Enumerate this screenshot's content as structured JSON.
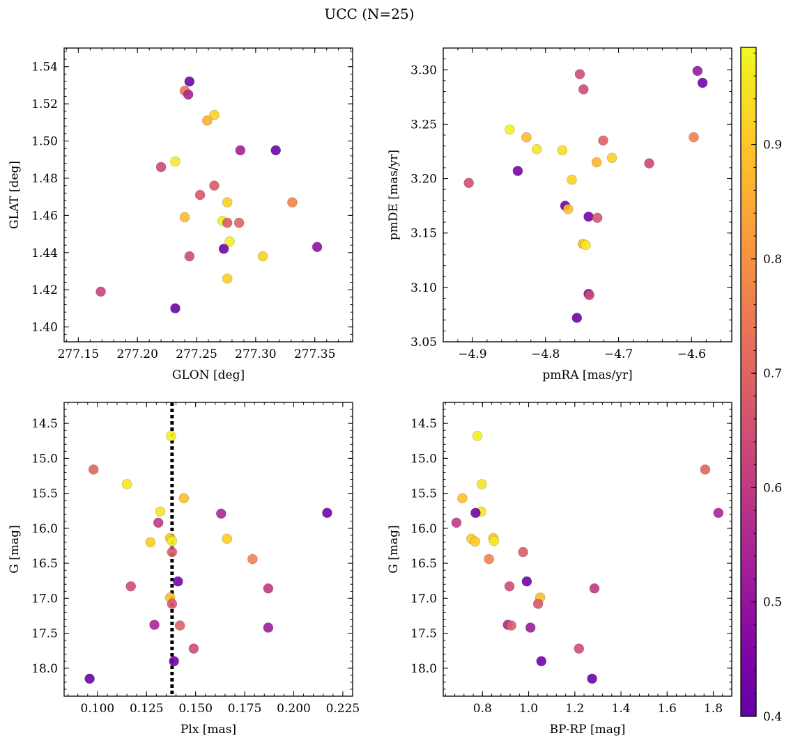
{
  "title": "UCC (N=25)",
  "colorbar": {
    "colormap": "plasma",
    "range": [
      0.4,
      0.985
    ],
    "ticks": [
      0.4,
      0.5,
      0.6,
      0.7,
      0.8,
      0.9
    ],
    "tick_labels": [
      "0.4",
      "0.5",
      "0.6",
      "0.7",
      "0.8",
      "0.9"
    ]
  },
  "chart_data": [
    {
      "type": "scatter",
      "name": "glon-glat",
      "xlabel": "GLON [deg]",
      "ylabel": "GLAT [deg]",
      "xlim": [
        277.138,
        277.382
      ],
      "ylim": [
        1.392,
        1.55
      ],
      "xticks": [
        277.15,
        277.2,
        277.25,
        277.3,
        277.35
      ],
      "xtick_labels": [
        "277.15",
        "277.20",
        "277.25",
        "277.30",
        "277.35"
      ],
      "yticks": [
        1.4,
        1.42,
        1.44,
        1.46,
        1.48,
        1.5,
        1.52,
        1.54
      ],
      "ytick_labels": [
        "1.40",
        "1.42",
        "1.44",
        "1.46",
        "1.48",
        "1.50",
        "1.52",
        "1.54"
      ],
      "points": [
        {
          "x": 277.244,
          "y": 1.532,
          "c": 0.43
        },
        {
          "x": 277.24,
          "y": 1.527,
          "c": 0.74
        },
        {
          "x": 277.243,
          "y": 1.525,
          "c": 0.55
        },
        {
          "x": 277.265,
          "y": 1.514,
          "c": 0.92
        },
        {
          "x": 277.259,
          "y": 1.511,
          "c": 0.86
        },
        {
          "x": 277.287,
          "y": 1.495,
          "c": 0.53
        },
        {
          "x": 277.317,
          "y": 1.495,
          "c": 0.42
        },
        {
          "x": 277.232,
          "y": 1.489,
          "c": 0.96
        },
        {
          "x": 277.22,
          "y": 1.486,
          "c": 0.63
        },
        {
          "x": 277.265,
          "y": 1.476,
          "c": 0.68
        },
        {
          "x": 277.253,
          "y": 1.471,
          "c": 0.67
        },
        {
          "x": 277.276,
          "y": 1.467,
          "c": 0.91
        },
        {
          "x": 277.331,
          "y": 1.467,
          "c": 0.77
        },
        {
          "x": 277.24,
          "y": 1.459,
          "c": 0.88
        },
        {
          "x": 277.272,
          "y": 1.457,
          "c": 0.97
        },
        {
          "x": 277.276,
          "y": 1.456,
          "c": 0.68
        },
        {
          "x": 277.286,
          "y": 1.456,
          "c": 0.7
        },
        {
          "x": 277.278,
          "y": 1.446,
          "c": 0.97
        },
        {
          "x": 277.352,
          "y": 1.443,
          "c": 0.49
        },
        {
          "x": 277.273,
          "y": 1.442,
          "c": 0.43
        },
        {
          "x": 277.306,
          "y": 1.438,
          "c": 0.92
        },
        {
          "x": 277.244,
          "y": 1.438,
          "c": 0.64
        },
        {
          "x": 277.276,
          "y": 1.426,
          "c": 0.92
        },
        {
          "x": 277.169,
          "y": 1.419,
          "c": 0.62
        },
        {
          "x": 277.232,
          "y": 1.41,
          "c": 0.42
        }
      ]
    },
    {
      "type": "scatter",
      "name": "pm",
      "xlabel": "pmRA [mas/yr]",
      "ylabel": "pmDE [mas/yr]",
      "xlim": [
        -4.94,
        -4.545
      ],
      "ylim": [
        3.05,
        3.32
      ],
      "xticks": [
        -4.9,
        -4.8,
        -4.7,
        -4.6
      ],
      "xtick_labels": [
        "−4.9",
        "−4.8",
        "−4.7",
        "−4.6"
      ],
      "yticks": [
        3.05,
        3.1,
        3.15,
        3.2,
        3.25,
        3.3
      ],
      "ytick_labels": [
        "3.05",
        "3.10",
        "3.15",
        "3.20",
        "3.25",
        "3.30"
      ],
      "points": [
        {
          "x": -4.592,
          "y": 3.299,
          "c": 0.51
        },
        {
          "x": -4.753,
          "y": 3.296,
          "c": 0.64
        },
        {
          "x": -4.585,
          "y": 3.288,
          "c": 0.43
        },
        {
          "x": -4.748,
          "y": 3.282,
          "c": 0.64
        },
        {
          "x": -4.849,
          "y": 3.245,
          "c": 0.97
        },
        {
          "x": -4.826,
          "y": 3.238,
          "c": 0.88
        },
        {
          "x": -4.597,
          "y": 3.238,
          "c": 0.76
        },
        {
          "x": -4.721,
          "y": 3.235,
          "c": 0.69
        },
        {
          "x": -4.812,
          "y": 3.227,
          "c": 0.95
        },
        {
          "x": -4.777,
          "y": 3.226,
          "c": 0.94
        },
        {
          "x": -4.709,
          "y": 3.219,
          "c": 0.92
        },
        {
          "x": -4.73,
          "y": 3.215,
          "c": 0.87
        },
        {
          "x": -4.658,
          "y": 3.214,
          "c": 0.63
        },
        {
          "x": -4.838,
          "y": 3.207,
          "c": 0.43
        },
        {
          "x": -4.764,
          "y": 3.199,
          "c": 0.92
        },
        {
          "x": -4.905,
          "y": 3.196,
          "c": 0.65
        },
        {
          "x": -4.773,
          "y": 3.175,
          "c": 0.43
        },
        {
          "x": -4.769,
          "y": 3.172,
          "c": 0.89
        },
        {
          "x": -4.741,
          "y": 3.165,
          "c": 0.44
        },
        {
          "x": -4.729,
          "y": 3.164,
          "c": 0.67
        },
        {
          "x": -4.749,
          "y": 3.14,
          "c": 0.88
        },
        {
          "x": -4.745,
          "y": 3.139,
          "c": 0.96
        },
        {
          "x": -4.741,
          "y": 3.094,
          "c": 0.44
        },
        {
          "x": -4.74,
          "y": 3.093,
          "c": 0.64
        },
        {
          "x": -4.757,
          "y": 3.072,
          "c": 0.43
        }
      ]
    },
    {
      "type": "scatter",
      "name": "plx-g",
      "xlabel": "Plx [mas]",
      "ylabel": "G [mag]",
      "xlim": [
        0.083,
        0.23
      ],
      "ylim": [
        18.4,
        14.2
      ],
      "y_inverted": true,
      "xticks": [
        0.1,
        0.125,
        0.15,
        0.175,
        0.2,
        0.225
      ],
      "xtick_labels": [
        "0.100",
        "0.125",
        "0.150",
        "0.175",
        "0.200",
        "0.225"
      ],
      "yticks": [
        14.5,
        15.0,
        15.5,
        16.0,
        16.5,
        17.0,
        17.5,
        18.0
      ],
      "ytick_labels": [
        "14.5",
        "15.0",
        "15.5",
        "16.0",
        "16.5",
        "17.0",
        "17.5",
        "18.0"
      ],
      "vline": {
        "x": 0.138,
        "style": "dotted"
      },
      "points": [
        {
          "x": 0.1375,
          "y": 14.68,
          "c": 0.97
        },
        {
          "x": 0.098,
          "y": 15.16,
          "c": 0.7
        },
        {
          "x": 0.115,
          "y": 15.37,
          "c": 0.95
        },
        {
          "x": 0.144,
          "y": 15.57,
          "c": 0.89
        },
        {
          "x": 0.132,
          "y": 15.76,
          "c": 0.95
        },
        {
          "x": 0.163,
          "y": 15.79,
          "c": 0.55
        },
        {
          "x": 0.217,
          "y": 15.78,
          "c": 0.43
        },
        {
          "x": 0.131,
          "y": 15.92,
          "c": 0.6
        },
        {
          "x": 0.137,
          "y": 16.14,
          "c": 0.9
        },
        {
          "x": 0.166,
          "y": 16.15,
          "c": 0.91
        },
        {
          "x": 0.138,
          "y": 16.18,
          "c": 0.96
        },
        {
          "x": 0.127,
          "y": 16.2,
          "c": 0.91
        },
        {
          "x": 0.138,
          "y": 16.34,
          "c": 0.68
        },
        {
          "x": 0.179,
          "y": 16.44,
          "c": 0.77
        },
        {
          "x": 0.141,
          "y": 16.76,
          "c": 0.43
        },
        {
          "x": 0.117,
          "y": 16.83,
          "c": 0.64
        },
        {
          "x": 0.187,
          "y": 16.86,
          "c": 0.6
        },
        {
          "x": 0.137,
          "y": 16.99,
          "c": 0.88
        },
        {
          "x": 0.138,
          "y": 17.08,
          "c": 0.67
        },
        {
          "x": 0.129,
          "y": 17.38,
          "c": 0.55
        },
        {
          "x": 0.142,
          "y": 17.39,
          "c": 0.69
        },
        {
          "x": 0.187,
          "y": 17.42,
          "c": 0.52
        },
        {
          "x": 0.149,
          "y": 17.72,
          "c": 0.64
        },
        {
          "x": 0.139,
          "y": 17.9,
          "c": 0.43
        },
        {
          "x": 0.096,
          "y": 18.15,
          "c": 0.42
        }
      ]
    },
    {
      "type": "scatter",
      "name": "cmd",
      "xlabel": "BP-RP [mag]",
      "ylabel": "G [mag]",
      "xlim": [
        0.63,
        1.88
      ],
      "ylim": [
        18.4,
        14.2
      ],
      "y_inverted": true,
      "xticks": [
        0.8,
        1.0,
        1.2,
        1.4,
        1.6,
        1.8
      ],
      "xtick_labels": [
        "0.8",
        "1.0",
        "1.2",
        "1.4",
        "1.6",
        "1.8"
      ],
      "yticks": [
        14.5,
        15.0,
        15.5,
        16.0,
        16.5,
        17.0,
        17.5,
        18.0
      ],
      "ytick_labels": [
        "14.5",
        "15.0",
        "15.5",
        "16.0",
        "16.5",
        "17.0",
        "17.5",
        "18.0"
      ],
      "points": [
        {
          "x": 0.778,
          "y": 14.68,
          "c": 0.97
        },
        {
          "x": 1.765,
          "y": 15.16,
          "c": 0.7
        },
        {
          "x": 0.797,
          "y": 15.37,
          "c": 0.95
        },
        {
          "x": 0.713,
          "y": 15.57,
          "c": 0.89
        },
        {
          "x": 0.795,
          "y": 15.76,
          "c": 0.95
        },
        {
          "x": 0.77,
          "y": 15.78,
          "c": 0.43
        },
        {
          "x": 1.822,
          "y": 15.78,
          "c": 0.55
        },
        {
          "x": 0.687,
          "y": 15.92,
          "c": 0.6
        },
        {
          "x": 0.847,
          "y": 16.14,
          "c": 0.9
        },
        {
          "x": 0.752,
          "y": 16.15,
          "c": 0.91
        },
        {
          "x": 0.85,
          "y": 16.18,
          "c": 0.96
        },
        {
          "x": 0.768,
          "y": 16.19,
          "c": 0.91
        },
        {
          "x": 0.976,
          "y": 16.34,
          "c": 0.68
        },
        {
          "x": 0.828,
          "y": 16.44,
          "c": 0.77
        },
        {
          "x": 0.992,
          "y": 16.76,
          "c": 0.43
        },
        {
          "x": 0.917,
          "y": 16.83,
          "c": 0.64
        },
        {
          "x": 1.285,
          "y": 16.86,
          "c": 0.6
        },
        {
          "x": 1.05,
          "y": 16.99,
          "c": 0.88
        },
        {
          "x": 1.041,
          "y": 17.08,
          "c": 0.67
        },
        {
          "x": 0.91,
          "y": 17.38,
          "c": 0.55
        },
        {
          "x": 0.925,
          "y": 17.39,
          "c": 0.69
        },
        {
          "x": 1.008,
          "y": 17.42,
          "c": 0.52
        },
        {
          "x": 1.218,
          "y": 17.72,
          "c": 0.64
        },
        {
          "x": 1.055,
          "y": 17.9,
          "c": 0.43
        },
        {
          "x": 1.275,
          "y": 18.15,
          "c": 0.42
        }
      ]
    }
  ]
}
